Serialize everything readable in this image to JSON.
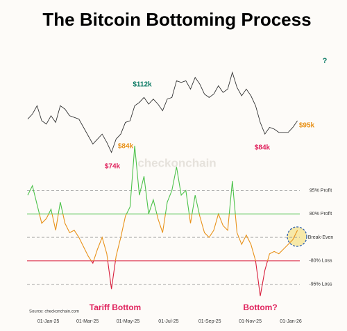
{
  "chart_data": {
    "type": "line",
    "title": "The Bitcoin Bottoming Process",
    "source": "Source: checkonchain.com",
    "watermark": "checkonchain",
    "corner_mark": "?",
    "x": [
      "2024-12-01",
      "2024-12-08",
      "2024-12-15",
      "2024-12-22",
      "2024-12-29",
      "2025-01-05",
      "2025-01-12",
      "2025-01-19",
      "2025-01-26",
      "2025-02-02",
      "2025-02-09",
      "2025-02-16",
      "2025-02-23",
      "2025-03-02",
      "2025-03-09",
      "2025-03-16",
      "2025-03-23",
      "2025-03-30",
      "2025-04-06",
      "2025-04-13",
      "2025-04-20",
      "2025-04-27",
      "2025-05-04",
      "2025-05-11",
      "2025-05-18",
      "2025-05-25",
      "2025-06-01",
      "2025-06-08",
      "2025-06-15",
      "2025-06-22",
      "2025-06-29",
      "2025-07-06",
      "2025-07-13",
      "2025-07-20",
      "2025-07-27",
      "2025-08-03",
      "2025-08-10",
      "2025-08-17",
      "2025-08-24",
      "2025-08-31",
      "2025-09-07",
      "2025-09-14",
      "2025-09-21",
      "2025-09-28",
      "2025-10-05",
      "2025-10-12",
      "2025-10-19",
      "2025-10-26",
      "2025-11-02",
      "2025-11-09",
      "2025-11-16",
      "2025-11-23",
      "2025-11-30",
      "2025-12-07",
      "2025-12-14",
      "2025-12-21",
      "2025-12-28",
      "2026-01-04",
      "2026-01-11"
    ],
    "xlim": [
      "2024-11-30",
      "2026-01-25"
    ],
    "xticks": [
      {
        "value": "2025-01-01",
        "label": "01-Jan-25"
      },
      {
        "value": "2025-03-01",
        "label": "01-Mar-25"
      },
      {
        "value": "2025-05-01",
        "label": "01-May-25"
      },
      {
        "value": "2025-07-01",
        "label": "01-Jul-25"
      },
      {
        "value": "2025-09-01",
        "label": "01-Sep-25"
      },
      {
        "value": "2025-11-01",
        "label": "01-Nov-25"
      },
      {
        "value": "2026-01-01",
        "label": "01-Jan-26"
      }
    ],
    "price": {
      "color": "#333333",
      "ylim": [
        70,
        130
      ],
      "values": [
        96,
        99,
        104,
        95,
        93,
        98,
        94,
        104,
        102,
        98,
        97,
        96,
        91,
        86,
        81,
        84,
        87,
        82,
        76,
        84,
        87,
        94,
        95,
        104,
        106,
        109,
        105,
        108,
        105,
        101,
        108,
        109,
        119,
        118,
        119,
        114,
        121,
        117,
        111,
        109,
        111,
        116,
        112,
        114,
        124,
        115,
        110,
        114,
        110,
        104,
        94,
        87,
        91,
        90,
        88,
        88,
        88,
        91,
        95
      ],
      "annotations": [
        {
          "value": 112,
          "label": "$112k",
          "color": "#0b7a64"
        },
        {
          "value": 84,
          "label": "$84k",
          "color": "#e8921a"
        },
        {
          "value": 74,
          "label": "$74k",
          "color": "#e0245e"
        },
        {
          "value": 84,
          "label": "$84k",
          "color": "#e0245e"
        },
        {
          "value": 95,
          "label": "$95k",
          "color": "#e8921a"
        }
      ]
    },
    "oscillator": {
      "colors": {
        "high": "#4cc24a",
        "mid": "#e8921a",
        "low": "#d81e3c"
      },
      "ylim": [
        -2.6,
        4.2
      ],
      "yticks": [
        {
          "value": 2,
          "label": "95% Profit"
        },
        {
          "value": 1,
          "label": "80% Profit"
        },
        {
          "value": 0,
          "label": "Break-Even"
        },
        {
          "value": -1,
          "label": "-80% Loss"
        },
        {
          "value": -2,
          "label": "-95% Loss"
        }
      ],
      "values": [
        1.8,
        2.2,
        1.4,
        0.6,
        0.8,
        1.2,
        0.3,
        1.5,
        0.6,
        0.2,
        0.3,
        0.0,
        -0.4,
        -0.8,
        -1.1,
        -0.5,
        0.0,
        -0.7,
        -2.2,
        -0.8,
        0.0,
        0.9,
        1.3,
        3.9,
        1.8,
        2.6,
        1.0,
        1.6,
        0.8,
        0.2,
        1.5,
        2.0,
        3.0,
        1.8,
        2.0,
        0.6,
        1.8,
        0.9,
        0.2,
        0.0,
        0.3,
        1.0,
        0.5,
        0.3,
        2.4,
        0.2,
        -0.3,
        0.1,
        -0.3,
        -1.0,
        -2.5,
        -1.4,
        -0.7,
        -0.6,
        -0.7,
        -0.5,
        -0.3,
        -0.1,
        0.3
      ],
      "annotations": [
        "Tariff Bottom",
        "Bottom?"
      ]
    }
  }
}
